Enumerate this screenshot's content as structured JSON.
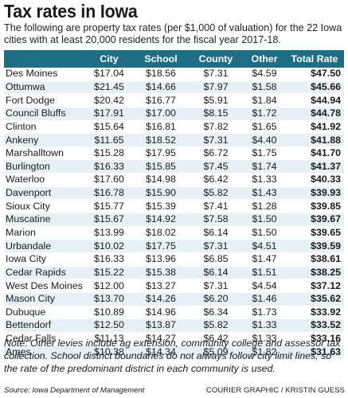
{
  "title": "Tax rates in Iowa",
  "subtitle": "The following are property tax rates (per $1,000 of valuation) for the 22 Iowa cities with at least 20,000 residents for the fiscal year 2017-18.",
  "note": "Note: Other levies include ag extension, community college and assessor tax collection. School district boundaries do not always follow city limit lines, so the rate of the predominant district in each community is used.",
  "source": "Source: Iowa Department of Management",
  "credit": "COURIER GRAPHIC / KRISTIN GUESS",
  "colors": {
    "header_bg": "#1e6f86",
    "stripe": "#e7f1f5"
  },
  "chart_data": {
    "type": "table",
    "columns": [
      "",
      "City",
      "School",
      "County",
      "Other",
      "Total Rate"
    ],
    "rows": [
      [
        "Des Moines",
        "$17.04",
        "$18.56",
        "$7.31",
        "$4.59",
        "$47.50"
      ],
      [
        "Ottumwa",
        "$21.45",
        "$14.66",
        "$7.97",
        "$1.58",
        "$45.66"
      ],
      [
        "Fort Dodge",
        "$20.42",
        "$16.77",
        "$5.91",
        "$1.84",
        "$44.94"
      ],
      [
        "Council Bluffs",
        "$17.91",
        "$17.00",
        "$8.15",
        "$1.72",
        "$44.78"
      ],
      [
        "Clinton",
        "$15.64",
        "$16.81",
        "$7.82",
        "$1.65",
        "$41.92"
      ],
      [
        "Ankeny",
        "$11.65",
        "$18.52",
        "$7.31",
        "$4.40",
        "$41.88"
      ],
      [
        "Marshalltown",
        "$15.28",
        "$17.95",
        "$6.72",
        "$1.75",
        "$41.70"
      ],
      [
        "Burlington",
        "$16.33",
        "$15.85",
        "$7.45",
        "$1.74",
        "$41.37"
      ],
      [
        "Waterloo",
        "$17.60",
        "$14.98",
        "$6.42",
        "$1.33",
        "$40.33"
      ],
      [
        "Davenport",
        "$16.78",
        "$15.90",
        "$5.82",
        "$1.43",
        "$39.93"
      ],
      [
        "Sioux City",
        "$15.77",
        "$15.39",
        "$7.41",
        "$1.28",
        "$39.85"
      ],
      [
        "Muscatine",
        "$15.67",
        "$14.92",
        "$7.58",
        "$1.50",
        "$39.67"
      ],
      [
        "Marion",
        "$13.99",
        "$18.02",
        "$6.14",
        "$1.50",
        "$39.65"
      ],
      [
        "Urbandale",
        "$10.02",
        "$17.75",
        "$7.31",
        "$4.51",
        "$39.59"
      ],
      [
        "Iowa City",
        "$16.33",
        "$13.96",
        "$6.85",
        "$1.47",
        "$38.61"
      ],
      [
        "Cedar Rapids",
        "$15.22",
        "$15.38",
        "$6.14",
        "$1.51",
        "$38.25"
      ],
      [
        "West Des Moines",
        "$12.00",
        "$13.27",
        "$7.31",
        "$4.54",
        "$37.12"
      ],
      [
        "Mason City",
        "$13.70",
        "$14.26",
        "$6.20",
        "$1.46",
        "$35.62"
      ],
      [
        "Dubuque",
        "$10.89",
        "$14.96",
        "$6.34",
        "$1.73",
        "$33.92"
      ],
      [
        "Bettendorf",
        "$12.50",
        "$13.87",
        "$5.82",
        "$1.33",
        "$33.52"
      ],
      [
        "Cedar Falls",
        "$11.13",
        "$14.27",
        "$6.42",
        "$1.33",
        "$33.16"
      ],
      [
        "Ames",
        "$10.38",
        "$14.34",
        "$5.09",
        "$1.82",
        "$31.63"
      ]
    ]
  }
}
